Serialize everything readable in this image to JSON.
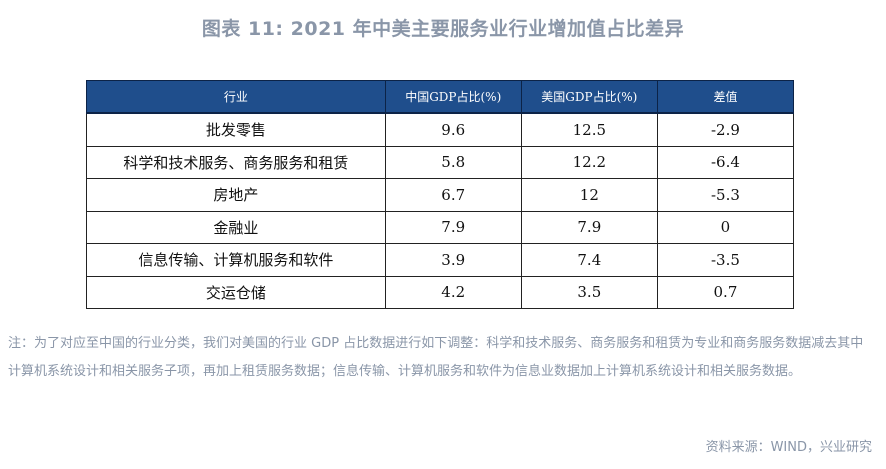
{
  "title": "图表 11: 2021 年中美主要服务业行业增加值占比差异",
  "table": {
    "headers": [
      "行业",
      "中国GDP占比(%)",
      "美国GDP占比(%)",
      "差值"
    ],
    "rows": [
      [
        "批发零售",
        "9.6",
        "12.5",
        "-2.9"
      ],
      [
        "科学和技术服务、商务服务和租赁",
        "5.8",
        "12.2",
        "-6.4"
      ],
      [
        "房地产",
        "6.7",
        "12",
        "-5.3"
      ],
      [
        "金融业",
        "7.9",
        "7.9",
        "0"
      ],
      [
        "信息传输、计算机服务和软件",
        "3.9",
        "7.4",
        "-3.5"
      ],
      [
        "交运仓储",
        "4.2",
        "3.5",
        "0.7"
      ]
    ]
  },
  "note": "注：为了对应至中国的行业分类，我们对美国的行业 GDP 占比数据进行如下调整：科学和技术服务、商务服务和租赁为专业和商务服务数据减去其中计算机系统设计和相关服务子项，再加上租赁服务数据；信息传输、计算机服务和软件为信息业数据加上计算机系统设计和相关服务数据。",
  "source": "资料来源：WIND，兴业研究"
}
